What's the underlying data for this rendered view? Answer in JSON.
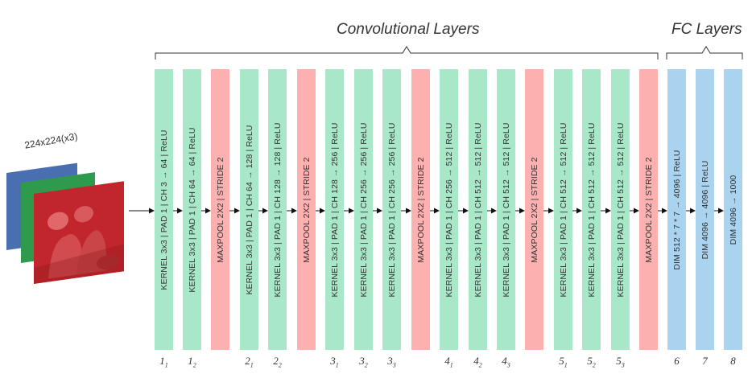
{
  "groups": {
    "conv_title": "Convolutional Layers",
    "fc_title": "FC Layers"
  },
  "input": {
    "label": "224x224(x3)",
    "channel_colors": [
      "#4a6fb0",
      "#2f9a4e",
      "#c0262b"
    ]
  },
  "colors": {
    "conv": "#a8e8c9",
    "pool": "#fdb0b0",
    "fc": "#a9d3ee",
    "arrow": "#111111",
    "bracket": "#333333"
  },
  "layers": [
    {
      "type": "conv",
      "label": "KERNEL 3x3 | PAD 1 | CH  3 → 64 | ReLU",
      "index": "1",
      "sub": "1"
    },
    {
      "type": "conv",
      "label": "KERNEL 3x3 | PAD 1 | CH  64 → 64 | ReLU",
      "index": "1",
      "sub": "2"
    },
    {
      "type": "pool",
      "label": "MAXPOOL 2X2 | STRIDE 2",
      "index": "",
      "sub": ""
    },
    {
      "type": "conv",
      "label": "KERNEL 3x3 | PAD 1 | CH  64 → 128 | ReLU",
      "index": "2",
      "sub": "1"
    },
    {
      "type": "conv",
      "label": "KERNEL 3x3 | PAD 1 | CH  128 → 128 | ReLU",
      "index": "2",
      "sub": "2"
    },
    {
      "type": "pool",
      "label": "MAXPOOL 2X2 | STRIDE 2",
      "index": "",
      "sub": ""
    },
    {
      "type": "conv",
      "label": "KERNEL 3x3 | PAD 1 | CH  128 → 256 | ReLU",
      "index": "3",
      "sub": "1"
    },
    {
      "type": "conv",
      "label": "KERNEL 3x3 | PAD 1 | CH  256 → 256 | ReLU",
      "index": "3",
      "sub": "2"
    },
    {
      "type": "conv",
      "label": "KERNEL 3x3 | PAD 1 | CH  256 → 256 | ReLU",
      "index": "3",
      "sub": "3"
    },
    {
      "type": "pool",
      "label": "MAXPOOL 2X2 | STRIDE 2",
      "index": "",
      "sub": ""
    },
    {
      "type": "conv",
      "label": "KERNEL 3x3 | PAD 1 | CH  256 → 512 | ReLU",
      "index": "4",
      "sub": "1"
    },
    {
      "type": "conv",
      "label": "KERNEL 3x3 | PAD 1 | CH  512 → 512 | ReLU",
      "index": "4",
      "sub": "2"
    },
    {
      "type": "conv",
      "label": "KERNEL 3x3 | PAD 1 | CH  512 → 512 | ReLU",
      "index": "4",
      "sub": "3"
    },
    {
      "type": "pool",
      "label": "MAXPOOL 2X2 | STRIDE 2",
      "index": "",
      "sub": ""
    },
    {
      "type": "conv",
      "label": "KERNEL 3x3 | PAD 1 | CH  512 → 512 | ReLU",
      "index": "5",
      "sub": "1"
    },
    {
      "type": "conv",
      "label": "KERNEL 3x3 | PAD 1 | CH  512 → 512 | ReLU",
      "index": "5",
      "sub": "2"
    },
    {
      "type": "conv",
      "label": "KERNEL 3x3 | PAD 1 | CH  512 → 512 | ReLU",
      "index": "5",
      "sub": "3"
    },
    {
      "type": "pool",
      "label": "MAXPOOL 2X2 | STRIDE 2",
      "index": "",
      "sub": ""
    },
    {
      "type": "fc",
      "label": "DIM 512 * 7 * 7 → 4096 | ReLU",
      "index": "6",
      "sub": ""
    },
    {
      "type": "fc",
      "label": "DIM 4096 → 4096 | ReLU",
      "index": "7",
      "sub": ""
    },
    {
      "type": "fc",
      "label": "DIM 4096 → 1000",
      "index": "8",
      "sub": ""
    }
  ]
}
